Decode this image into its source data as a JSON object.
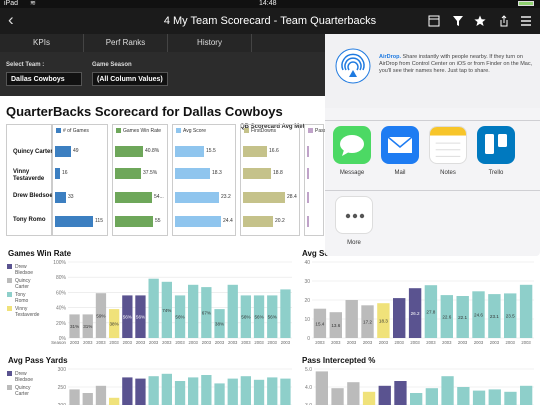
{
  "status_bar": {
    "device": "iPad",
    "wifi": "wifi-icon",
    "time": "14:48",
    "battery_icon": "battery-icon"
  },
  "header": {
    "title": "4 My Team Scorecard - Team Quarterbacks",
    "back_icon": "chevron-left-icon",
    "icons": [
      "grid-icon",
      "filter-icon",
      "star-icon",
      "share-icon",
      "list-icon"
    ]
  },
  "tabs": [
    "KPIs",
    "Perf Ranks",
    "History"
  ],
  "filters": {
    "team_label": "Select Team :",
    "team_value": "Dallas Cowboys",
    "season_label": "Game Season",
    "season_value": "(All Column Values)"
  },
  "scorecard": {
    "title": "QuarterBacks Scorecard for Dallas Cowboys",
    "subtitle": "QB Scorecard Avg Met",
    "players": [
      "Quincy Carter",
      "Vinny Testaverde",
      "Drew Bledsoe",
      "Tony Romo"
    ],
    "metrics": [
      {
        "label": "# of Games",
        "color": "#3c7fc1",
        "values": [
          "49",
          "16",
          "33",
          "115"
        ],
        "fractions": [
          0.43,
          0.14,
          0.29,
          1.0
        ]
      },
      {
        "label": "Games Win Rate",
        "color": "#6ea75a",
        "values": [
          "40.8%",
          "37.5%",
          "54...",
          "55"
        ],
        "fractions": [
          0.74,
          0.68,
          0.98,
          1.0
        ]
      },
      {
        "label": "Avg Score",
        "color": "#8fc5ee",
        "values": [
          "15.5",
          "18.3",
          "23.2",
          "24.4"
        ],
        "fractions": [
          0.64,
          0.75,
          0.95,
          1.0
        ]
      },
      {
        "label": "FirstDowns",
        "color": "#c5c28a",
        "values": [
          "16.6",
          "18.8",
          "28.4",
          "20.2"
        ],
        "fractions": [
          0.58,
          0.66,
          1.0,
          0.71
        ]
      },
      {
        "label": "Pass",
        "color": "#c0a3c9",
        "values": [
          "",
          "",
          "",
          ""
        ],
        "fractions": [
          0.8,
          0.7,
          0.9,
          0.85
        ]
      }
    ]
  },
  "charts": {
    "win_rate": {
      "title": "Games Win Rate",
      "legend": [
        "Drew Bledsoe",
        "Quincy Carter",
        "Tony Romo",
        "Vinny Testaverde"
      ],
      "legend_colors": [
        "#5a5390",
        "#bbbbbb",
        "#8ecfca",
        "#f0e27a"
      ],
      "y_ticks": [
        "100%",
        "80%",
        "60%",
        "40%",
        "20%",
        "0%"
      ],
      "x_label": "Season",
      "x_tick_sample": "2003",
      "bars": [
        {
          "v": 31,
          "c": "#bbbbbb",
          "label": "31%"
        },
        {
          "v": 31,
          "c": "#bbbbbb",
          "label": "31%"
        },
        {
          "v": 59,
          "c": "#bbbbbb",
          "label": "59%"
        },
        {
          "v": 38,
          "c": "#f0e27a",
          "label": "38%"
        },
        {
          "v": 56,
          "c": "#5a5390",
          "label": "56%"
        },
        {
          "v": 56,
          "c": "#5a5390",
          "label": "56%"
        },
        {
          "v": 78,
          "c": "#8ecfca",
          "label": ""
        },
        {
          "v": 74,
          "c": "#8ecfca",
          "label": "74%"
        },
        {
          "v": 56,
          "c": "#8ecfca",
          "label": "56%"
        },
        {
          "v": 70,
          "c": "#8ecfca",
          "label": ""
        },
        {
          "v": 67,
          "c": "#8ecfca",
          "label": "67%"
        },
        {
          "v": 38,
          "c": "#8ecfca",
          "label": "38%"
        },
        {
          "v": 70,
          "c": "#8ecfca",
          "label": ""
        },
        {
          "v": 56,
          "c": "#8ecfca",
          "label": "56%"
        },
        {
          "v": 56,
          "c": "#8ecfca",
          "label": "56%"
        },
        {
          "v": 56,
          "c": "#8ecfca",
          "label": "56%"
        },
        {
          "v": 64,
          "c": "#8ecfca",
          "label": ""
        }
      ]
    },
    "avg_score": {
      "title": "Avg Sc...",
      "y_ticks": [
        "40",
        "30",
        "20",
        "10",
        "0"
      ],
      "bars": [
        {
          "v": 15.4,
          "c": "#bbbbbb",
          "label": "15.4"
        },
        {
          "v": 13.6,
          "c": "#bbbbbb",
          "label": "13.6"
        },
        {
          "v": 20,
          "c": "#bbbbbb",
          "label": ""
        },
        {
          "v": 17.2,
          "c": "#bbbbbb",
          "label": "17.2"
        },
        {
          "v": 18.3,
          "c": "#f0e27a",
          "label": "18.3"
        },
        {
          "v": 21,
          "c": "#5a5390",
          "label": ""
        },
        {
          "v": 26.2,
          "c": "#5a5390",
          "label": "26.2"
        },
        {
          "v": 27.8,
          "c": "#8ecfca",
          "label": "27.8"
        },
        {
          "v": 22.6,
          "c": "#8ecfca",
          "label": "22.6"
        },
        {
          "v": 22.1,
          "c": "#8ecfca",
          "label": "22.1"
        },
        {
          "v": 24.6,
          "c": "#8ecfca",
          "label": "24.6"
        },
        {
          "v": 23.1,
          "c": "#8ecfca",
          "label": "23.1"
        },
        {
          "v": 23.5,
          "c": "#8ecfca",
          "label": "23.5"
        },
        {
          "v": 28,
          "c": "#8ecfca",
          "label": ""
        }
      ]
    },
    "avg_pass_yards": {
      "title": "Avg Pass Yards",
      "legend": [
        "Drew Bledsoe",
        "Quincy Carter"
      ],
      "legend_colors": [
        "#5a5390",
        "#bbbbbb"
      ],
      "y_ticks": [
        "300",
        "250",
        "200"
      ],
      "bars": [
        {
          "v": 215,
          "c": "#bbbbbb"
        },
        {
          "v": 200,
          "c": "#bbbbbb"
        },
        {
          "v": 230,
          "c": "#bbbbbb"
        },
        {
          "v": 180,
          "c": "#f0e27a"
        },
        {
          "v": 265,
          "c": "#5a5390"
        },
        {
          "v": 260,
          "c": "#5a5390"
        },
        {
          "v": 270,
          "c": "#8ecfca"
        },
        {
          "v": 280,
          "c": "#8ecfca"
        },
        {
          "v": 250,
          "c": "#8ecfca"
        },
        {
          "v": 265,
          "c": "#8ecfca"
        },
        {
          "v": 275,
          "c": "#8ecfca"
        },
        {
          "v": 240,
          "c": "#8ecfca"
        },
        {
          "v": 260,
          "c": "#8ecfca"
        },
        {
          "v": 270,
          "c": "#8ecfca"
        },
        {
          "v": 255,
          "c": "#8ecfca"
        },
        {
          "v": 265,
          "c": "#8ecfca"
        },
        {
          "v": 260,
          "c": "#8ecfca"
        }
      ]
    },
    "pass_intercepted": {
      "title": "Pass Intercepted %",
      "y_ticks": [
        "5.0",
        "4.0",
        "3.0"
      ],
      "bars": [
        {
          "v": 4.8,
          "c": "#bbbbbb"
        },
        {
          "v": 3.4,
          "c": "#bbbbbb"
        },
        {
          "v": 3.9,
          "c": "#bbbbbb"
        },
        {
          "v": 3.1,
          "c": "#f0e27a"
        },
        {
          "v": 3.6,
          "c": "#5a5390"
        },
        {
          "v": 4.0,
          "c": "#5a5390"
        },
        {
          "v": 3.0,
          "c": "#8ecfca"
        },
        {
          "v": 3.4,
          "c": "#8ecfca"
        },
        {
          "v": 4.4,
          "c": "#8ecfca"
        },
        {
          "v": 3.5,
          "c": "#8ecfca"
        },
        {
          "v": 3.2,
          "c": "#8ecfca"
        },
        {
          "v": 3.3,
          "c": "#8ecfca"
        },
        {
          "v": 3.1,
          "c": "#8ecfca"
        },
        {
          "v": 3.6,
          "c": "#8ecfca"
        }
      ]
    }
  },
  "share_sheet": {
    "airdrop_title": "AirDrop.",
    "airdrop_text": "Share instantly with people nearby. If they turn on AirDrop from Control Center on iOS or from Finder on the Mac, you'll see their names here. Just tap to share.",
    "apps": [
      {
        "label": "Message",
        "icon": "message-icon",
        "color": "#4cd964"
      },
      {
        "label": "Mail",
        "icon": "mail-icon",
        "color": "#1e7cf2"
      },
      {
        "label": "Notes",
        "icon": "notes-icon",
        "color": "#ffffff"
      },
      {
        "label": "Trello",
        "icon": "trello-icon",
        "color": "#0079bf"
      },
      {
        "label": "",
        "icon": "app-icon",
        "color": "#f08a24"
      }
    ],
    "more_label": "More"
  }
}
